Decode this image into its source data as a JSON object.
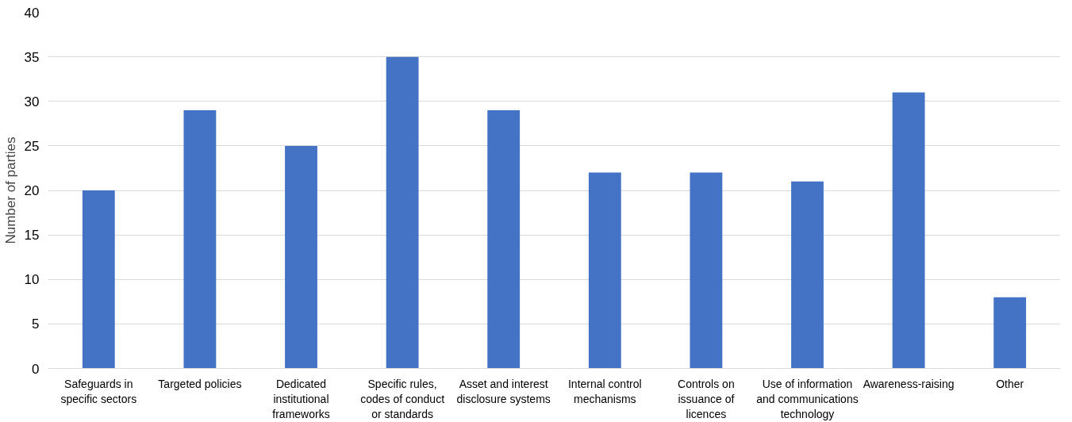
{
  "chart_data": {
    "type": "bar",
    "ylabel": "Number of parties",
    "categories": [
      "Safeguards in specific sectors",
      "Targeted policies",
      "Dedicated institutional frameworks",
      "Specific rules, codes of conduct or standards",
      "Asset and interest disclosure systems",
      "Internal control mechanisms",
      "Controls on issuance of licences",
      "Use of information and communications technology",
      "Awareness-raising",
      "Other"
    ],
    "values": [
      20,
      29,
      25,
      35,
      29,
      22,
      22,
      21,
      31,
      8
    ],
    "color": "#4472c4",
    "ylim": [
      0,
      40
    ],
    "yticks": [
      0,
      5,
      10,
      15,
      20,
      25,
      30,
      35,
      40
    ],
    "grid": "y"
  }
}
